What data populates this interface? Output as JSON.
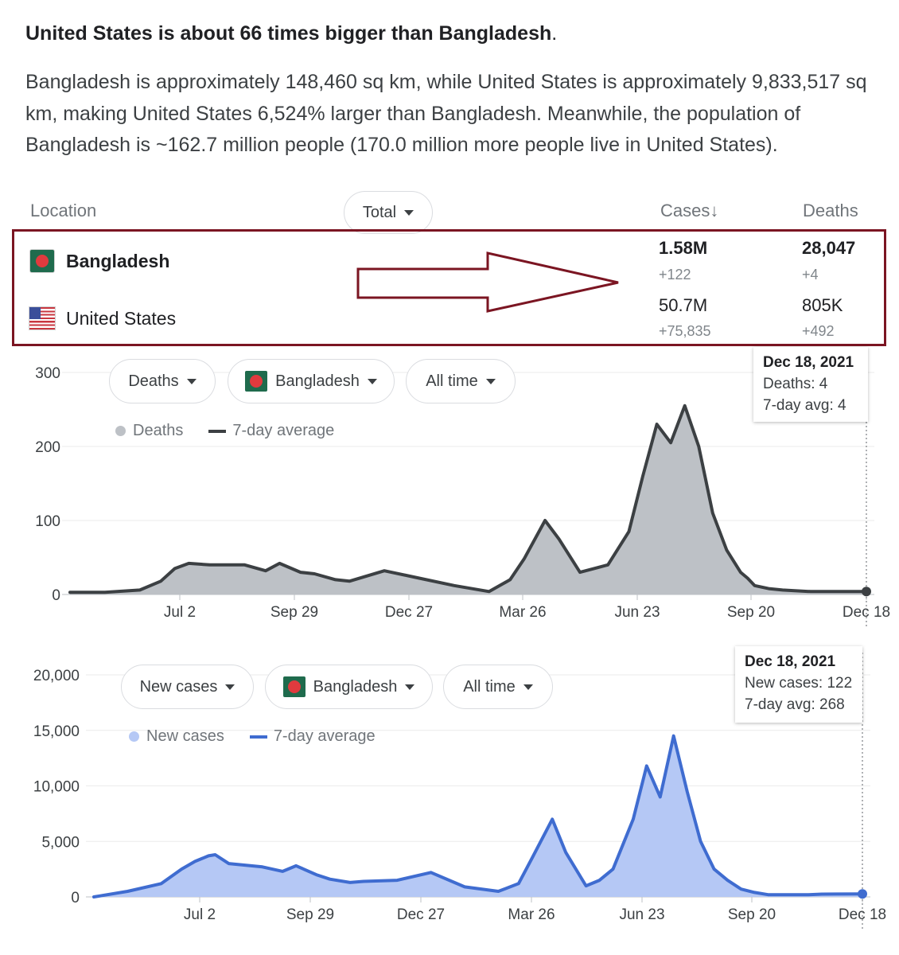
{
  "headline": {
    "bold": "United States is about 66 times bigger than Bangladesh",
    "tail": "."
  },
  "paragraph": "Bangladesh is approximately 148,460 sq km, while United States is approximately 9,833,517 sq km, making United States 6,524% larger than Bangladesh. Meanwhile, the population of Bangladesh is ~162.7 million people (170.0 million more people live in United States).",
  "table": {
    "headers": {
      "location": "Location",
      "total": "Total",
      "cases": "Cases↓",
      "deaths": "Deaths"
    },
    "rows": [
      {
        "country": "Bangladesh",
        "cases": "1.58M",
        "cases_delta": "+122",
        "deaths": "28,047",
        "deaths_delta": "+4"
      },
      {
        "country": "United States",
        "cases": "50.7M",
        "cases_delta": "+75,835",
        "deaths": "805K",
        "deaths_delta": "+492"
      }
    ]
  },
  "colors": {
    "frame": "#7b1522",
    "deaths_bar": "#bdc1c6",
    "deaths_line": "#3c4043",
    "cases_bar": "#b5c8f5",
    "cases_line": "#3f6cd0",
    "flag_green": "#1f6b4d",
    "flag_red": "#e03a3e"
  },
  "chart_data": [
    {
      "type": "area",
      "title": "Deaths",
      "controls": {
        "metric": "Deaths",
        "location": "Bangladesh",
        "range": "All time"
      },
      "legend": {
        "bars": "Deaths",
        "line": "7-day average"
      },
      "x_labels": [
        "Jul 2",
        "Sep 29",
        "Dec 27",
        "Mar 26",
        "Jun 23",
        "Sep 20",
        "Dec 18"
      ],
      "y_ticks": [
        0,
        100,
        200,
        300
      ],
      "y_tick_labels": [
        "0",
        "100",
        "200",
        "300"
      ],
      "ylim": [
        0,
        300
      ],
      "x": [
        0,
        5,
        10,
        13,
        15,
        17,
        20,
        25,
        28,
        30,
        33,
        35,
        38,
        40,
        45,
        50,
        55,
        60,
        63,
        65,
        68,
        70,
        73,
        75,
        77,
        80,
        82,
        84,
        86,
        88,
        90,
        92,
        94,
        96,
        97,
        98,
        100,
        102,
        104,
        106,
        108,
        110,
        114
      ],
      "series": [
        {
          "name": "7-day average",
          "values": [
            3,
            3,
            6,
            18,
            35,
            42,
            40,
            40,
            32,
            42,
            30,
            28,
            20,
            18,
            32,
            22,
            12,
            4,
            20,
            48,
            100,
            75,
            30,
            35,
            40,
            85,
            160,
            230,
            205,
            255,
            200,
            110,
            60,
            30,
            22,
            12,
            8,
            6,
            5,
            4,
            4,
            4,
            4
          ]
        }
      ],
      "tooltip": {
        "date": "Dec 18, 2021",
        "line1": "Deaths: 4",
        "line2": "7-day avg: 4"
      }
    },
    {
      "type": "area",
      "title": "New cases",
      "controls": {
        "metric": "New cases",
        "location": "Bangladesh",
        "range": "All time"
      },
      "legend": {
        "bars": "New cases",
        "line": "7-day average"
      },
      "x_labels": [
        "Jul 2",
        "Sep 29",
        "Dec 27",
        "Mar 26",
        "Jun 23",
        "Sep 20",
        "Dec 18"
      ],
      "y_ticks": [
        0,
        5000,
        10000,
        15000,
        20000
      ],
      "y_tick_labels": [
        "0",
        "5,000",
        "10,000",
        "15,000",
        "20,000"
      ],
      "ylim": [
        0,
        20000
      ],
      "x": [
        0,
        5,
        10,
        13,
        15,
        17,
        18,
        20,
        25,
        28,
        30,
        33,
        35,
        38,
        40,
        45,
        50,
        55,
        60,
        63,
        65,
        68,
        70,
        73,
        75,
        77,
        80,
        82,
        84,
        86,
        88,
        90,
        92,
        94,
        96,
        98,
        100,
        102,
        104,
        106,
        108,
        110,
        114
      ],
      "series": [
        {
          "name": "7-day average",
          "values": [
            0,
            500,
            1200,
            2500,
            3200,
            3700,
            3800,
            3000,
            2700,
            2300,
            2800,
            2000,
            1600,
            1300,
            1400,
            1500,
            2200,
            900,
            500,
            1200,
            3500,
            7000,
            4000,
            1000,
            1500,
            2500,
            7000,
            11800,
            9000,
            14500,
            9500,
            5000,
            2500,
            1500,
            700,
            400,
            200,
            200,
            200,
            200,
            250,
            260,
            268
          ]
        }
      ],
      "tooltip": {
        "date": "Dec 18, 2021",
        "line1": "New cases: 122",
        "line2": "7-day avg: 268"
      }
    }
  ]
}
